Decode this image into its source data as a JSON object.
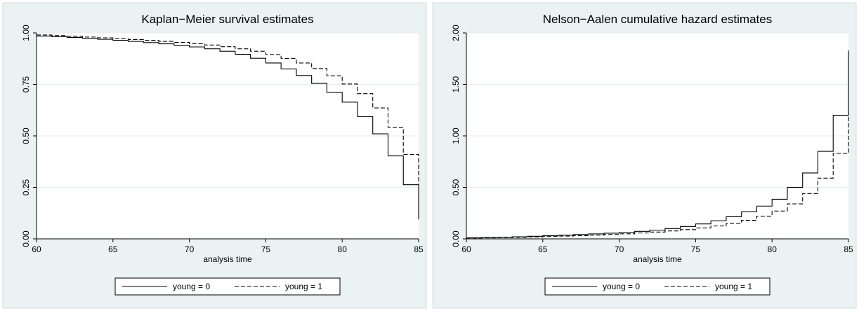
{
  "chart_data": [
    {
      "type": "line",
      "title": "Kaplan−Meier survival estimates",
      "xlabel": "analysis time",
      "ylabel": "",
      "xlim": [
        60,
        85
      ],
      "ylim": [
        0,
        1
      ],
      "x_ticks": [
        "60",
        "65",
        "70",
        "75",
        "80",
        "85"
      ],
      "x_tick_values": [
        60,
        65,
        70,
        75,
        80,
        85
      ],
      "y_ticks": [
        "0.00",
        "0.25",
        "0.50",
        "0.75",
        "1.00"
      ],
      "y_tick_values": [
        0,
        0.25,
        0.5,
        0.75,
        1.0
      ],
      "grid": true,
      "legend_position": "bottom",
      "series": [
        {
          "name": "young = 0",
          "line_style": "solid",
          "step": true,
          "x": [
            60,
            61,
            62,
            63,
            64,
            65,
            66,
            67,
            68,
            69,
            70,
            71,
            72,
            73,
            74,
            75,
            76,
            77,
            78,
            79,
            80,
            81,
            82,
            83,
            84,
            85
          ],
          "y": [
            0.985,
            0.982,
            0.978,
            0.974,
            0.969,
            0.964,
            0.959,
            0.953,
            0.947,
            0.94,
            0.932,
            0.923,
            0.911,
            0.896,
            0.877,
            0.854,
            0.825,
            0.793,
            0.755,
            0.711,
            0.664,
            0.594,
            0.51,
            0.403,
            0.263,
            0.095
          ]
        },
        {
          "name": "young = 1",
          "line_style": "dashed",
          "step": true,
          "x": [
            60,
            61,
            62,
            63,
            64,
            65,
            66,
            67,
            68,
            69,
            70,
            71,
            72,
            73,
            74,
            75,
            76,
            77,
            78,
            79,
            80,
            81,
            82,
            83,
            84,
            85
          ],
          "y": [
            0.99,
            0.987,
            0.984,
            0.98,
            0.976,
            0.972,
            0.968,
            0.964,
            0.959,
            0.954,
            0.948,
            0.941,
            0.933,
            0.923,
            0.911,
            0.895,
            0.876,
            0.854,
            0.827,
            0.792,
            0.752,
            0.705,
            0.636,
            0.541,
            0.41,
            0.26
          ]
        }
      ]
    },
    {
      "type": "line",
      "title": "Nelson−Aalen cumulative hazard estimates",
      "xlabel": "analysis time",
      "ylabel": "",
      "xlim": [
        60,
        85
      ],
      "ylim": [
        0,
        2
      ],
      "x_ticks": [
        "60",
        "65",
        "70",
        "75",
        "80",
        "85"
      ],
      "x_tick_values": [
        60,
        65,
        70,
        75,
        80,
        85
      ],
      "y_ticks": [
        "0.00",
        "0.50",
        "1.00",
        "1.50",
        "2.00"
      ],
      "y_tick_values": [
        0,
        0.5,
        1.0,
        1.5,
        2.0
      ],
      "grid": true,
      "legend_position": "bottom",
      "series": [
        {
          "name": "young = 0",
          "line_style": "solid",
          "step": true,
          "x": [
            60,
            61,
            62,
            63,
            64,
            65,
            66,
            67,
            68,
            69,
            70,
            71,
            72,
            73,
            74,
            75,
            76,
            77,
            78,
            79,
            80,
            81,
            82,
            83,
            84,
            85
          ],
          "y": [
            0.01,
            0.013,
            0.016,
            0.02,
            0.025,
            0.03,
            0.036,
            0.042,
            0.048,
            0.055,
            0.063,
            0.073,
            0.085,
            0.1,
            0.12,
            0.145,
            0.176,
            0.215,
            0.262,
            0.318,
            0.385,
            0.5,
            0.64,
            0.85,
            1.2,
            1.83
          ]
        },
        {
          "name": "young = 1",
          "line_style": "dashed",
          "step": true,
          "x": [
            60,
            61,
            62,
            63,
            64,
            65,
            66,
            67,
            68,
            69,
            70,
            71,
            72,
            73,
            74,
            75,
            76,
            77,
            78,
            79,
            80,
            81,
            82,
            83,
            84,
            85
          ],
          "y": [
            0.008,
            0.01,
            0.012,
            0.015,
            0.019,
            0.023,
            0.027,
            0.031,
            0.036,
            0.042,
            0.049,
            0.057,
            0.066,
            0.077,
            0.09,
            0.106,
            0.125,
            0.15,
            0.18,
            0.22,
            0.27,
            0.34,
            0.44,
            0.59,
            0.83,
            1.25
          ]
        }
      ]
    }
  ]
}
